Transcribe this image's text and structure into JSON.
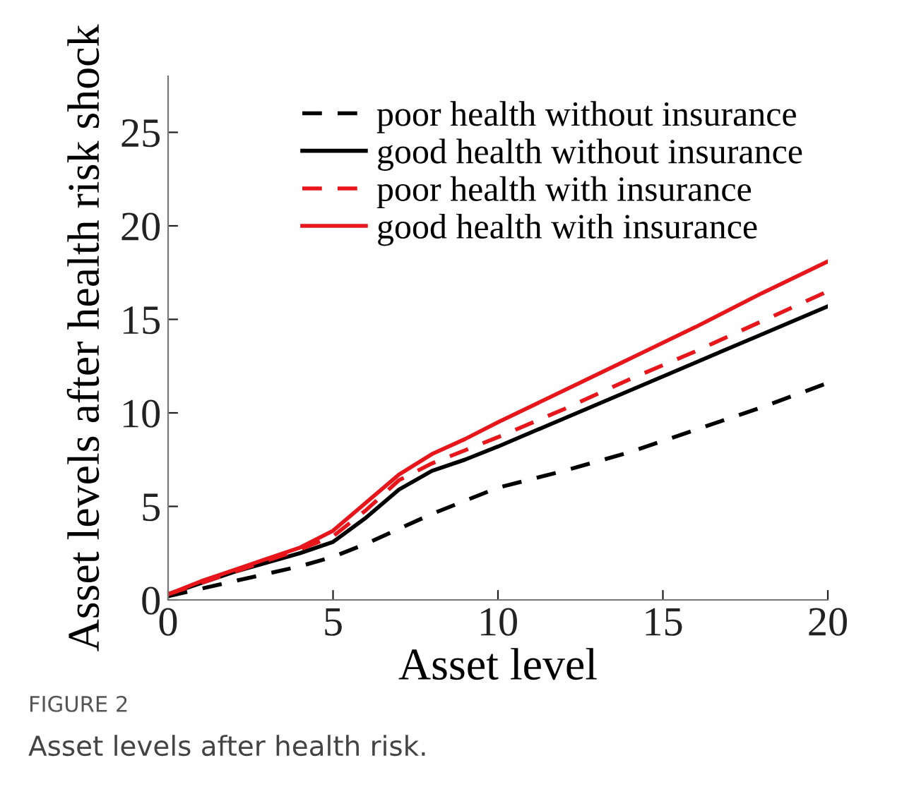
{
  "chart_data": {
    "type": "line",
    "xlabel": "Asset level",
    "ylabel": "Asset levels after health risk shock",
    "annotations": [
      "FIGURE 2",
      "Asset levels after health risk."
    ],
    "xlim": [
      0,
      20
    ],
    "ylim": [
      0,
      28
    ],
    "xticks": [
      0,
      5,
      10,
      15,
      20
    ],
    "yticks": [
      0,
      5,
      10,
      15,
      20,
      25
    ],
    "grid": false,
    "legend": "top right",
    "marker": "none",
    "x": [
      0,
      1,
      2,
      3,
      4,
      5,
      6,
      7,
      8,
      9,
      10,
      12,
      14,
      16,
      18,
      20
    ],
    "series": [
      {
        "name": "poor health without insurance",
        "color": "#000000",
        "line_style": "dashed",
        "values": [
          0.2,
          0.6,
          1.0,
          1.4,
          1.8,
          2.3,
          3.0,
          3.8,
          4.6,
          5.3,
          6.0,
          6.9,
          7.9,
          9.1,
          10.3,
          11.6
        ]
      },
      {
        "name": "good health without insurance",
        "color": "#000000",
        "line_style": "solid",
        "values": [
          0.3,
          0.9,
          1.5,
          2.0,
          2.5,
          3.1,
          4.4,
          5.9,
          6.9,
          7.5,
          8.2,
          9.7,
          11.2,
          12.7,
          14.2,
          15.7
        ]
      },
      {
        "name": "poor health with insurance",
        "color": "#e8151b",
        "line_style": "dashed",
        "values": [
          0.3,
          0.9,
          1.5,
          2.1,
          2.7,
          3.4,
          4.8,
          6.4,
          7.3,
          8.0,
          8.7,
          10.2,
          11.8,
          13.3,
          14.9,
          16.5
        ]
      },
      {
        "name": "good health with insurance",
        "color": "#e8151b",
        "line_style": "solid",
        "values": [
          0.3,
          1.0,
          1.6,
          2.2,
          2.8,
          3.7,
          5.2,
          6.7,
          7.8,
          8.6,
          9.5,
          11.2,
          12.9,
          14.6,
          16.4,
          18.1
        ]
      }
    ]
  }
}
